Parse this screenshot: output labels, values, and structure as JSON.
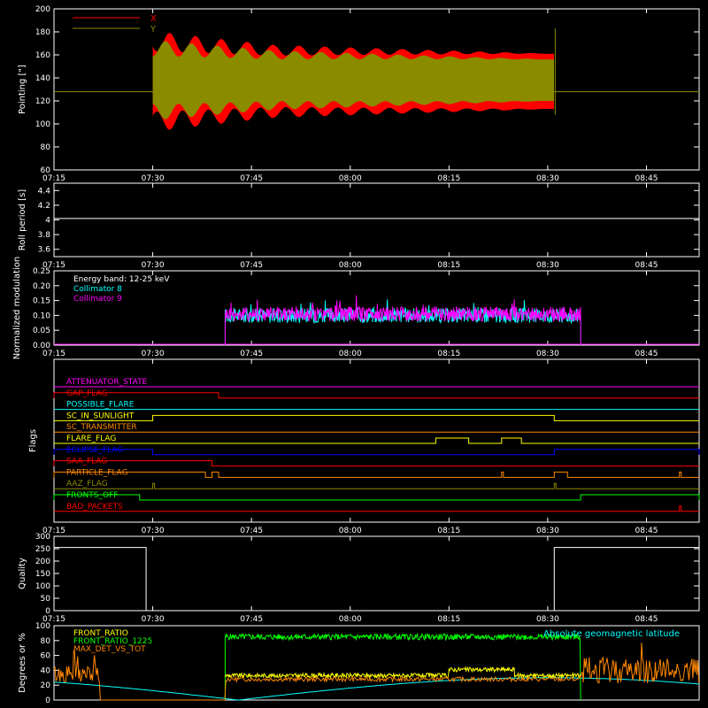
{
  "chart_data": [
    {
      "type": "line",
      "ylabel": "Pointing [\"]",
      "ylim": [
        60,
        200
      ],
      "yticks": [
        60,
        80,
        100,
        120,
        140,
        160,
        180,
        200
      ],
      "xticks": [
        "07:15",
        "07:30",
        "07:45",
        "08:00",
        "08:15",
        "08:30",
        "08:45"
      ],
      "legend": {
        "placement": "top-left",
        "entries": [
          "X",
          "Y"
        ]
      },
      "series": [
        {
          "name": "X",
          "color": "#ff0000",
          "t_start": "07:30",
          "t_end": "08:31",
          "center": 137,
          "amplitude_start": 35,
          "amplitude_mid": 27,
          "amplitude_end": 24
        },
        {
          "name": "Y",
          "color": "#8b8b00",
          "t_start": "07:30",
          "t_end": "08:31",
          "center": 138,
          "amplitude_start": 28,
          "amplitude_mid": 22,
          "amplitude_end": 18
        }
      ],
      "reference_line": 128
    },
    {
      "type": "line",
      "ylabel": "Roll period [s]",
      "ylim": [
        3.5,
        4.5
      ],
      "yticks": [
        3.6,
        3.8,
        4.0,
        4.2,
        4.4
      ],
      "xticks": [
        "07:15",
        "07:30",
        "07:45",
        "08:00",
        "08:15",
        "08:30",
        "08:45"
      ],
      "series": [
        {
          "color": "#ffffff",
          "value": 4.02
        }
      ]
    },
    {
      "type": "line",
      "ylabel": "Normalized modulation",
      "ylim": [
        0,
        0.25
      ],
      "yticks": [
        "0.00",
        "0.05",
        "0.10",
        "0.15",
        "0.20",
        "0.25"
      ],
      "xticks": [
        "07:15",
        "07:30",
        "07:45",
        "08:00",
        "08:15",
        "08:30",
        "08:45"
      ],
      "legend": {
        "placement": "top-left",
        "entries": [
          "Energy band: 12-25 keV",
          "Collimator 8",
          "Collimator 9"
        ]
      },
      "series": [
        {
          "name": "Collimator 8",
          "color": "#00ffff",
          "t_start": "07:41",
          "t_end": "08:35",
          "mean": 0.1
        },
        {
          "name": "Collimator 9",
          "color": "#ff00ff",
          "t_start": "07:41",
          "t_end": "08:35",
          "mean": 0.105
        }
      ]
    },
    {
      "type": "line",
      "ylabel": "Flags",
      "xticks": [
        "07:15",
        "07:30",
        "07:45",
        "08:00",
        "08:15",
        "08:30",
        "08:45"
      ],
      "flags": [
        {
          "name": "ATTENUATOR_STATE",
          "color": "#ff00ff",
          "on": []
        },
        {
          "name": "SAA_FLAG",
          "color": "#ff0000",
          "on": [
            [
              "07:15",
              "07:40"
            ]
          ],
          "label_override": "GAP_FLAG"
        },
        {
          "name": "POSSIBLE_FLARE",
          "color": "#00ffff",
          "on": []
        },
        {
          "name": "SC_IN_SUNLIGHT",
          "color": "#ffff00",
          "on": [
            [
              "07:30",
              "08:31"
            ]
          ]
        },
        {
          "name": "SC_TRANSMITTER",
          "color": "#ff8800",
          "on": []
        },
        {
          "name": "FLARE_FLAG",
          "color": "#ffff00",
          "on": [
            [
              "08:13",
              "08:18"
            ],
            [
              "08:23",
              "08:26"
            ]
          ]
        },
        {
          "name": "ECLIPSE_FLAG",
          "color": "#0000ff",
          "on": [
            [
              "07:15",
              "07:30"
            ],
            [
              "08:31",
              "08:53"
            ]
          ]
        },
        {
          "name": "SAA_FLAG",
          "color": "#ff0000",
          "on": [
            [
              "07:15",
              "07:39"
            ]
          ]
        },
        {
          "name": "PARTICLE_FLAG",
          "color": "#ff8800",
          "on": [
            [
              "07:15",
              "07:38"
            ],
            [
              "07:39",
              "07:40"
            ],
            [
              "08:23",
              "08:23"
            ],
            [
              "08:31",
              "08:33"
            ],
            [
              "08:50",
              "08:50"
            ]
          ]
        },
        {
          "name": "AAZ_FLAG",
          "color": "#8b8b00",
          "on": [
            [
              "07:30",
              "07:30"
            ],
            [
              "08:31",
              "08:31"
            ]
          ]
        },
        {
          "name": "FRONTS_OFF",
          "color": "#00ff00",
          "on": [
            [
              "07:15",
              "07:28"
            ],
            [
              "08:35",
              "08:53"
            ]
          ]
        },
        {
          "name": "BAD_PACKETS",
          "color": "#ff0000",
          "on": [
            [
              "08:50",
              "08:50"
            ]
          ]
        }
      ]
    },
    {
      "type": "line",
      "ylabel": "Quality",
      "ylim": [
        0,
        300
      ],
      "yticks": [
        0,
        50,
        100,
        150,
        200,
        250,
        300
      ],
      "xticks": [
        "07:15",
        "07:30",
        "07:45",
        "08:00",
        "08:15",
        "08:30",
        "08:45"
      ],
      "series": [
        {
          "color": "#ffffff",
          "segments": [
            [
              "07:15",
              "07:29",
              255
            ],
            [
              "07:29",
              "07:30",
              0
            ],
            [
              "08:31",
              "08:53",
              255
            ]
          ]
        }
      ]
    },
    {
      "type": "line",
      "ylabel": "Degrees or %",
      "ylim": [
        0,
        100
      ],
      "yticks": [
        0,
        20,
        40,
        60,
        80,
        100
      ],
      "legend": {
        "placement": "top-left",
        "entries": [
          "FRONT_RATIO",
          "FRONT_RATIO_1225",
          "MAX_DET_VS_TOT"
        ]
      },
      "annotation": "Absolute geomagnetic latitude",
      "series": [
        {
          "name": "FRONT_RATIO",
          "color": "#ffff00",
          "t_start": "07:41",
          "t_end": "08:35",
          "mean": 33
        },
        {
          "name": "FRONT_RATIO_1225",
          "color": "#00ff00",
          "t_start": "07:41",
          "t_end": "08:35",
          "mean": 85
        },
        {
          "name": "MAX_DET_VS_TOT",
          "color": "#ff8800",
          "mean": 30
        },
        {
          "name": "Absolute geomagnetic latitude",
          "color": "#00ffff",
          "min": 0,
          "max": 30
        }
      ]
    }
  ]
}
